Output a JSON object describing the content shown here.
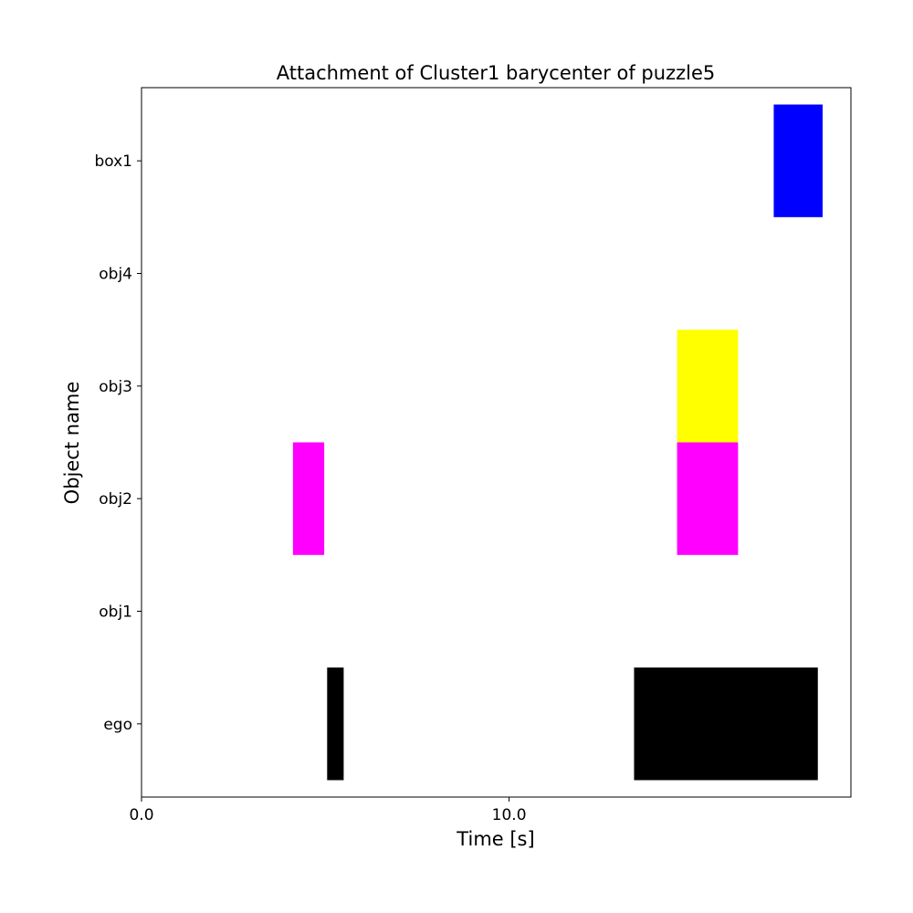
{
  "chart_data": {
    "type": "bar",
    "orientation": "horizontal-timeline",
    "title": "Attachment of Cluster1 barycenter of puzzle5",
    "xlabel": "Time [s]",
    "ylabel": "Object name",
    "xlim": [
      0.0,
      19.3
    ],
    "xticks": [
      0.0,
      10.0
    ],
    "xtick_labels": [
      "0.0",
      "10.0"
    ],
    "categories": [
      "ego",
      "obj1",
      "obj2",
      "obj3",
      "obj4",
      "box1"
    ],
    "grid": false,
    "series": [
      {
        "category": "ego",
        "color": "#000000",
        "intervals": [
          {
            "start": 5.05,
            "end": 5.5
          },
          {
            "start": 13.4,
            "end": 18.4
          }
        ]
      },
      {
        "category": "obj1",
        "color": "#000000",
        "intervals": []
      },
      {
        "category": "obj2",
        "color": "#ff00ff",
        "intervals": [
          {
            "start": 4.12,
            "end": 4.97
          },
          {
            "start": 14.57,
            "end": 16.23
          }
        ]
      },
      {
        "category": "obj3",
        "color": "#ffff00",
        "intervals": [
          {
            "start": 14.57,
            "end": 16.23
          }
        ]
      },
      {
        "category": "obj4",
        "color": "#000000",
        "intervals": []
      },
      {
        "category": "box1",
        "color": "#0000ff",
        "intervals": [
          {
            "start": 17.2,
            "end": 18.53
          }
        ]
      }
    ]
  }
}
